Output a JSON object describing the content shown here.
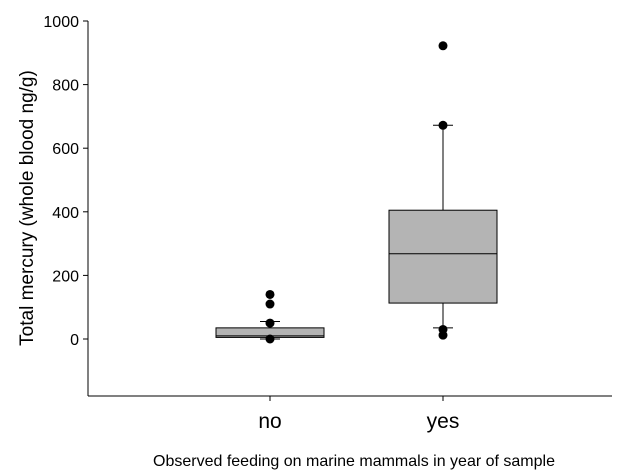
{
  "chart_data": {
    "type": "box",
    "title": "",
    "xlabel": "Observed feeding on marine mammals  in year of sample",
    "ylabel": "Total mercury (whole blood ng/g)",
    "ylim": [
      -170,
      1000
    ],
    "yticks": [
      0,
      200,
      400,
      600,
      800,
      1000
    ],
    "categories": [
      "no",
      "yes"
    ],
    "boxes": [
      {
        "category": "no",
        "whisker_low": 0,
        "q1": 5,
        "median": 10,
        "q3": 35,
        "whisker_high": 55,
        "outliers": [
          140,
          110,
          50,
          0
        ]
      },
      {
        "category": "yes",
        "whisker_low": 35,
        "q1": 113,
        "median": 268,
        "q3": 405,
        "whisker_high": 672,
        "outliers": [
          922,
          672,
          30,
          12
        ]
      }
    ],
    "box_fill": "#b4b4b4",
    "grid": false,
    "legend": false
  }
}
